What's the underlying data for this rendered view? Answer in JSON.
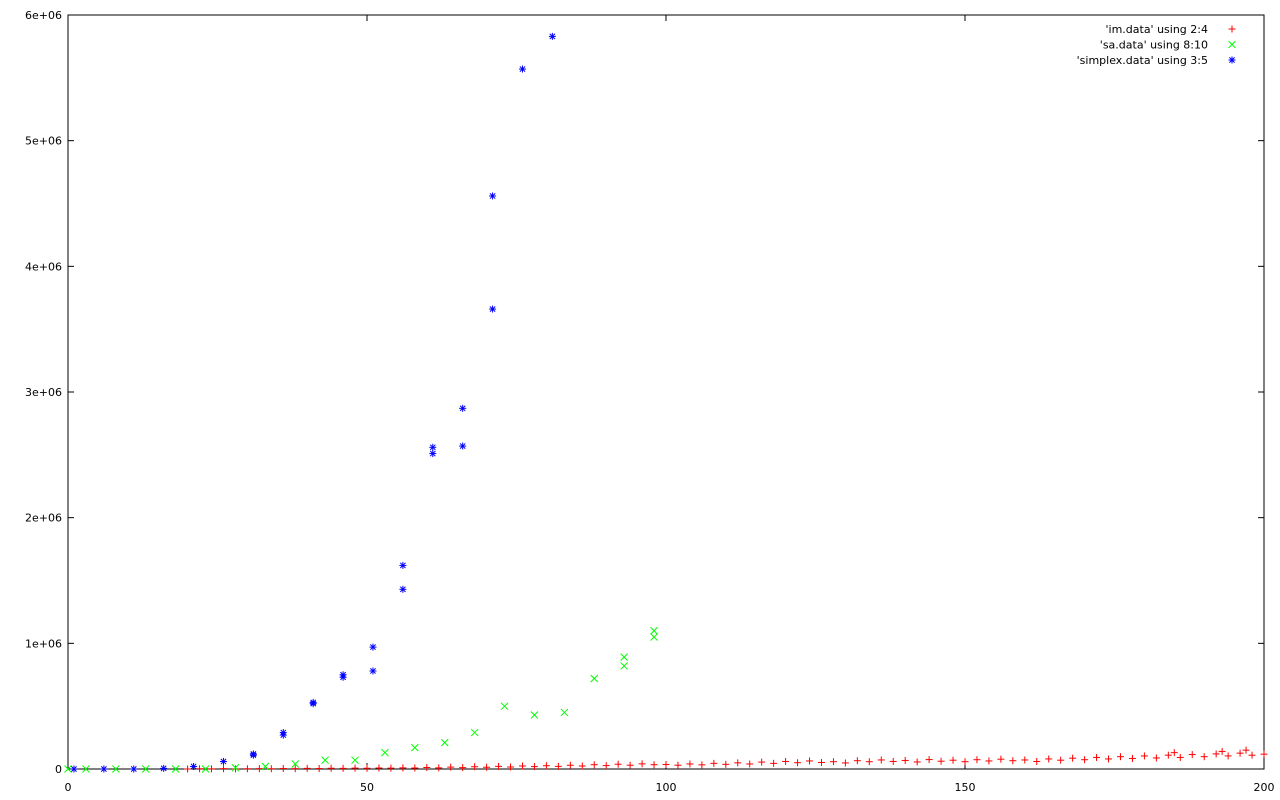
{
  "chart_data": {
    "type": "scatter",
    "title": "",
    "xlabel": "",
    "ylabel": "",
    "xlim": [
      0,
      200
    ],
    "ylim": [
      0,
      6000000
    ],
    "xticks": [
      0,
      50,
      100,
      150,
      200
    ],
    "xtick_labels": [
      "0",
      "50",
      "100",
      "150",
      "200"
    ],
    "yticks": [
      0,
      1000000,
      2000000,
      3000000,
      4000000,
      5000000,
      6000000
    ],
    "ytick_labels": [
      "0",
      "1e+06",
      "2e+06",
      "3e+06",
      "4e+06",
      "5e+06",
      "6e+06"
    ],
    "grid": false,
    "legend_position": "top-right",
    "series": [
      {
        "name": "'im.data' using 2:4",
        "marker": "plus",
        "color": "#ff0000",
        "points": [
          [
            20,
            0
          ],
          [
            22,
            2000
          ],
          [
            24,
            1000
          ],
          [
            26,
            3000
          ],
          [
            28,
            1000
          ],
          [
            30,
            2000
          ],
          [
            32,
            3000
          ],
          [
            34,
            2000
          ],
          [
            36,
            4000
          ],
          [
            38,
            3000
          ],
          [
            40,
            5000
          ],
          [
            42,
            4000
          ],
          [
            44,
            6000
          ],
          [
            46,
            5000
          ],
          [
            48,
            7000
          ],
          [
            50,
            6000
          ],
          [
            52,
            8000
          ],
          [
            54,
            7000
          ],
          [
            56,
            9000
          ],
          [
            58,
            8000
          ],
          [
            60,
            12000
          ],
          [
            62,
            9000
          ],
          [
            64,
            15000
          ],
          [
            66,
            11000
          ],
          [
            68,
            18000
          ],
          [
            70,
            14000
          ],
          [
            72,
            21000
          ],
          [
            74,
            16000
          ],
          [
            76,
            24000
          ],
          [
            78,
            19000
          ],
          [
            80,
            26000
          ],
          [
            82,
            21000
          ],
          [
            84,
            30000
          ],
          [
            86,
            24000
          ],
          [
            88,
            34000
          ],
          [
            90,
            27000
          ],
          [
            92,
            38000
          ],
          [
            94,
            30000
          ],
          [
            96,
            41000
          ],
          [
            98,
            34000
          ],
          [
            100,
            36000
          ],
          [
            102,
            30000
          ],
          [
            104,
            40000
          ],
          [
            106,
            33000
          ],
          [
            108,
            45000
          ],
          [
            110,
            37000
          ],
          [
            112,
            49000
          ],
          [
            114,
            40000
          ],
          [
            116,
            55000
          ],
          [
            118,
            45000
          ],
          [
            120,
            60000
          ],
          [
            122,
            50000
          ],
          [
            124,
            64000
          ],
          [
            126,
            52000
          ],
          [
            128,
            58000
          ],
          [
            130,
            48000
          ],
          [
            132,
            66000
          ],
          [
            134,
            58000
          ],
          [
            136,
            72000
          ],
          [
            138,
            60000
          ],
          [
            140,
            68000
          ],
          [
            142,
            56000
          ],
          [
            144,
            75000
          ],
          [
            146,
            62000
          ],
          [
            148,
            70000
          ],
          [
            150,
            58000
          ],
          [
            152,
            74000
          ],
          [
            154,
            64000
          ],
          [
            156,
            78000
          ],
          [
            158,
            66000
          ],
          [
            160,
            72000
          ],
          [
            162,
            60000
          ],
          [
            164,
            80000
          ],
          [
            166,
            70000
          ],
          [
            168,
            86000
          ],
          [
            170,
            74000
          ],
          [
            172,
            92000
          ],
          [
            174,
            80000
          ],
          [
            176,
            98000
          ],
          [
            178,
            84000
          ],
          [
            180,
            104000
          ],
          [
            182,
            88000
          ],
          [
            184,
            110000
          ],
          [
            186,
            92000
          ],
          [
            188,
            115000
          ],
          [
            190,
            98000
          ],
          [
            192,
            120000
          ],
          [
            194,
            104000
          ],
          [
            196,
            126000
          ],
          [
            198,
            110000
          ],
          [
            200,
            118000
          ],
          [
            197,
            150000
          ],
          [
            193,
            140000
          ],
          [
            185,
            130000
          ]
        ]
      },
      {
        "name": "'sa.data' using 8:10",
        "marker": "cross",
        "color": "#00ff00",
        "points": [
          [
            0,
            0
          ],
          [
            3,
            0
          ],
          [
            8,
            0
          ],
          [
            13,
            0
          ],
          [
            18,
            0
          ],
          [
            23,
            0
          ],
          [
            28,
            10000
          ],
          [
            33,
            20000
          ],
          [
            38,
            40000
          ],
          [
            43,
            70000
          ],
          [
            48,
            70000
          ],
          [
            53,
            130000
          ],
          [
            58,
            170000
          ],
          [
            63,
            210000
          ],
          [
            68,
            290000
          ],
          [
            73,
            500000
          ],
          [
            78,
            430000
          ],
          [
            83,
            450000
          ],
          [
            88,
            720000
          ],
          [
            93,
            820000
          ],
          [
            93,
            890000
          ],
          [
            98,
            1050000
          ],
          [
            98,
            1100000
          ]
        ]
      },
      {
        "name": "'simplex.data' using 3:5",
        "marker": "star",
        "color": "#0000ff",
        "points": [
          [
            1,
            0
          ],
          [
            6,
            0
          ],
          [
            11,
            0
          ],
          [
            16,
            5000
          ],
          [
            21,
            20000
          ],
          [
            26,
            60000
          ],
          [
            31,
            120000
          ],
          [
            31,
            110000
          ],
          [
            36,
            290000
          ],
          [
            36,
            270000
          ],
          [
            41,
            530000
          ],
          [
            41,
            520000
          ],
          [
            46,
            750000
          ],
          [
            46,
            730000
          ],
          [
            51,
            970000
          ],
          [
            51,
            780000
          ],
          [
            56,
            1620000
          ],
          [
            56,
            1430000
          ],
          [
            61,
            2560000
          ],
          [
            61,
            2510000
          ],
          [
            66,
            2870000
          ],
          [
            66,
            2570000
          ],
          [
            71,
            4560000
          ],
          [
            71,
            3660000
          ],
          [
            76,
            5570000
          ],
          [
            81,
            5830000
          ]
        ]
      }
    ]
  }
}
